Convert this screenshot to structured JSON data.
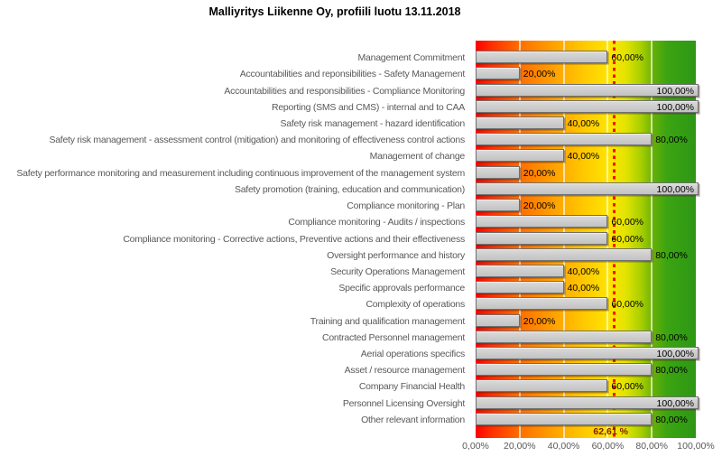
{
  "chart_data": {
    "type": "bar",
    "orientation": "horizontal",
    "title": "Malliyritys Liikenne Oy, profiili luotu 13.11.2018",
    "categories": [
      "Management Commitment",
      "Accountabilities and reponsibilities - Safety Management",
      "Accountabilities and responsibilities - Compliance Monitoring",
      "Reporting (SMS and CMS) - internal and to CAA",
      "Safety risk management - hazard identification",
      "Safety risk management - assessment control (mitigation) and monitoring of effectiveness control actions",
      "Management of change",
      "Safety performance monitoring and measurement including continuous improvement of the management system",
      "Safety promotion (training, education and communication)",
      "Compliance monitoring - Plan",
      "Compliance monitoring - Audits / inspections",
      "Compliance monitoring - Corrective actions, Preventive actions and their effectiveness",
      "Oversight performance and history",
      "Security Operations Management",
      "Specific approvals performance",
      "Complexity of operations",
      "Training and qualification management",
      "Contracted Personnel management",
      "Aerial operations specifics",
      "Asset / resource management",
      "Company Financial Health",
      "Personnel Licensing Oversight",
      "Other relevant information"
    ],
    "values": [
      60,
      20,
      100,
      100,
      40,
      80,
      40,
      20,
      100,
      20,
      60,
      60,
      80,
      40,
      40,
      60,
      20,
      80,
      100,
      80,
      60,
      100,
      80
    ],
    "value_labels": [
      "60,00%",
      "20,00%",
      "100,00%",
      "100,00%",
      "40,00%",
      "80,00%",
      "40,00%",
      "20,00%",
      "100,00%",
      "20,00%",
      "60,00%",
      "60,00%",
      "80,00%",
      "40,00%",
      "40,00%",
      "60,00%",
      "20,00%",
      "80,00%",
      "100,00%",
      "80,00%",
      "60,00%",
      "100,00%",
      "80,00%"
    ],
    "x_ticks": [
      "0,00%",
      "20,00%",
      "40,00%",
      "60,00%",
      "80,00%",
      "100,00%"
    ],
    "x_tick_positions": [
      0,
      20,
      40,
      60,
      80,
      100
    ],
    "xlim": [
      0,
      100
    ],
    "gridline_positions": [
      20,
      40,
      60,
      80
    ],
    "legend": "none",
    "mean_line": {
      "value": 62.61,
      "label": "62,61 %"
    },
    "colors": {
      "gradient_low": "#fe0000",
      "gradient_mid": "#ffcb00",
      "gradient_high": "#2d9714",
      "bar_fill": "#c9c9c9",
      "bar_border": "#6e6e6e",
      "gridline": "#ffffff",
      "mean_line": "#ff0000",
      "mean_label_text": "#7f1d00",
      "category_text": "#595959",
      "value_text": "#000000",
      "title_text": "#000000"
    }
  }
}
